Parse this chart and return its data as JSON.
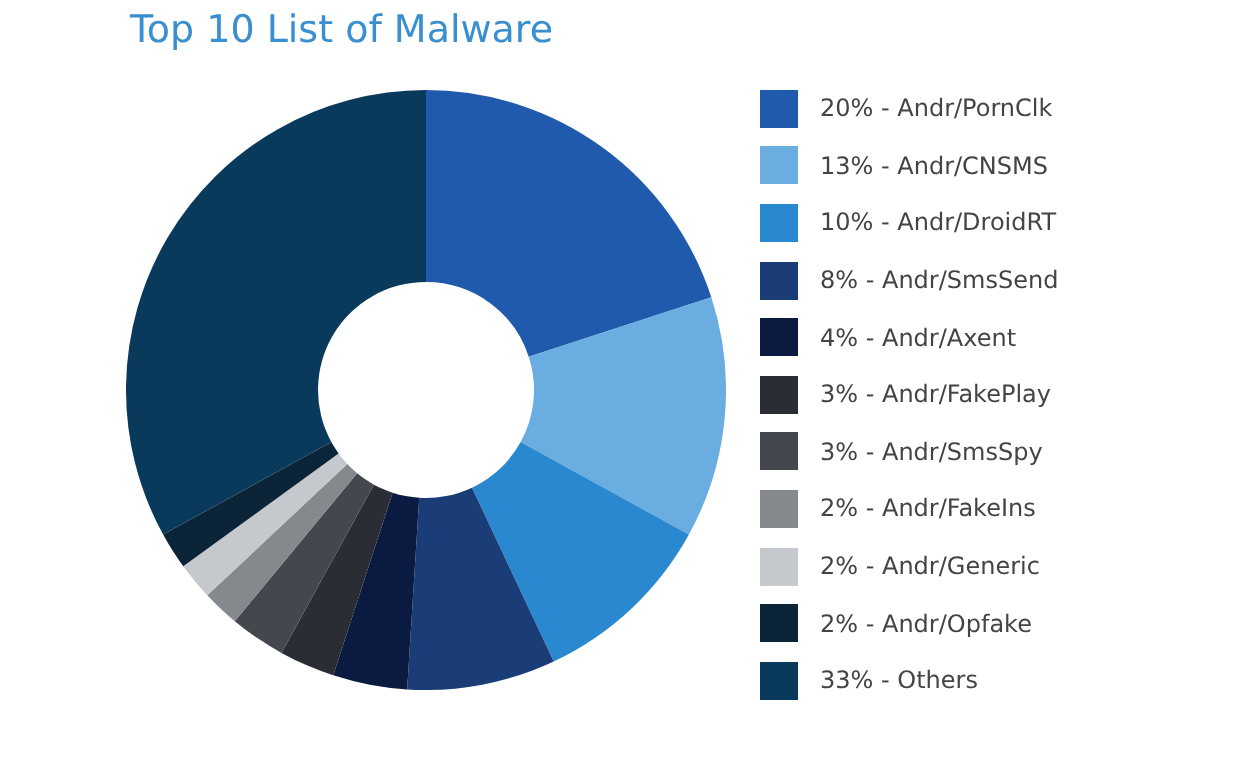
{
  "chart_data": {
    "type": "donut",
    "title": "Top 10 List of Malware",
    "categories": [
      "20% - Andr/PornClk",
      "13% - Andr/CNSMS",
      "10% - Andr/DroidRT",
      "8% - Andr/SmsSend",
      "4% - Andr/Axent",
      "3% - Andr/FakePlay",
      "3% - Andr/SmsSpy",
      "2% - Andr/FakeIns",
      "2% - Andr/Generic",
      "2% - Andr/Opfake",
      "33% - Others"
    ],
    "values": [
      20,
      13,
      10,
      8,
      4,
      3,
      3,
      2,
      2,
      2,
      33
    ],
    "colors": [
      "#1f5aad",
      "#6aade0",
      "#2a88d0",
      "#1a3d78",
      "#0a1a40",
      "#2a2d34",
      "#44474e",
      "#85888d",
      "#c5c8cc",
      "#0c2438",
      "#093a5c"
    ],
    "legend": "right"
  }
}
